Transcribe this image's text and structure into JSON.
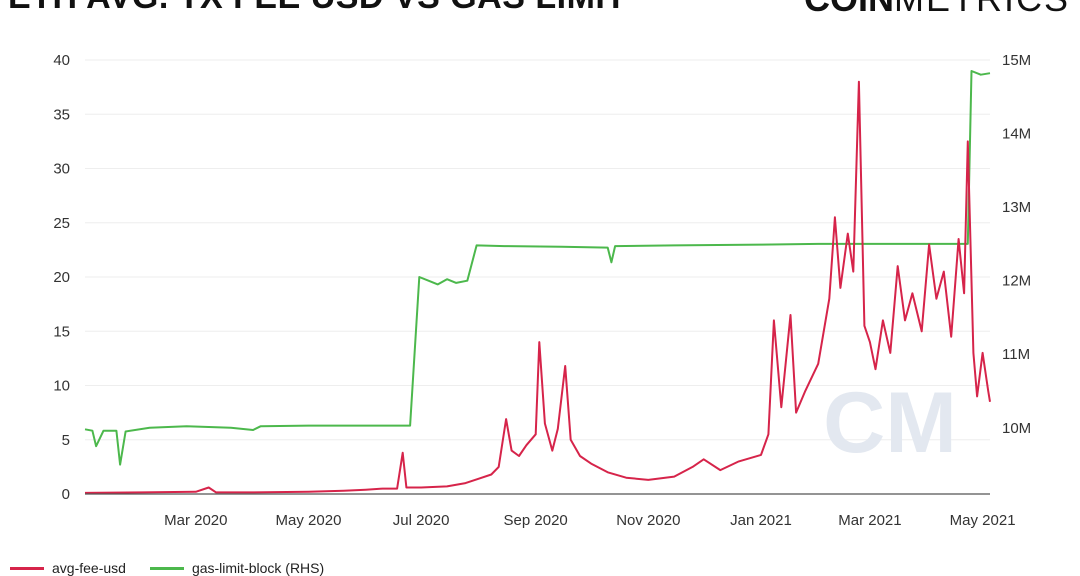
{
  "header": {
    "title": "ETH AVG. TX FEE USD VS GAS LIMIT",
    "logo_bold": "COIN",
    "logo_light": "METRICS"
  },
  "chart_data": {
    "type": "line",
    "x_axis": {
      "type": "date",
      "range": [
        "2020-01-01",
        "2021-05-05"
      ],
      "tick_labels": [
        "Mar 2020",
        "May 2020",
        "Jul 2020",
        "Sep 2020",
        "Nov 2020",
        "Jan 2021",
        "Mar 2021",
        "May 2021"
      ],
      "tick_dates": [
        "2020-03-01",
        "2020-05-01",
        "2020-07-01",
        "2020-09-01",
        "2020-11-01",
        "2021-01-01",
        "2021-03-01",
        "2021-05-01"
      ]
    },
    "y_axis_left": {
      "range": [
        0,
        40
      ],
      "ticks": [
        0,
        5,
        10,
        15,
        20,
        25,
        30,
        35,
        40
      ],
      "tick_labels": [
        "0",
        "5",
        "10",
        "15",
        "20",
        "25",
        "30",
        "35",
        "40"
      ]
    },
    "y_axis_right": {
      "range": [
        9.1,
        15
      ],
      "ticks": [
        10,
        11,
        12,
        13,
        14,
        15
      ],
      "tick_labels": [
        "10M",
        "11M",
        "12M",
        "13M",
        "14M",
        "15M"
      ]
    },
    "grid": true,
    "legend_position": "bottom-left",
    "watermark": "CM",
    "series": [
      {
        "name": "avg-fee-usd",
        "color": "#d6244a",
        "axis": "left",
        "points": [
          [
            "2020-01-01",
            0.1
          ],
          [
            "2020-02-01",
            0.15
          ],
          [
            "2020-03-01",
            0.2
          ],
          [
            "2020-03-08",
            0.6
          ],
          [
            "2020-03-12",
            0.15
          ],
          [
            "2020-04-01",
            0.15
          ],
          [
            "2020-05-01",
            0.2
          ],
          [
            "2020-05-20",
            0.3
          ],
          [
            "2020-06-01",
            0.4
          ],
          [
            "2020-06-10",
            0.5
          ],
          [
            "2020-06-18",
            0.5
          ],
          [
            "2020-06-21",
            3.8
          ],
          [
            "2020-06-23",
            0.6
          ],
          [
            "2020-07-01",
            0.6
          ],
          [
            "2020-07-15",
            0.7
          ],
          [
            "2020-07-25",
            1.0
          ],
          [
            "2020-08-01",
            1.4
          ],
          [
            "2020-08-08",
            1.8
          ],
          [
            "2020-08-12",
            2.5
          ],
          [
            "2020-08-16",
            6.9
          ],
          [
            "2020-08-19",
            4.0
          ],
          [
            "2020-08-23",
            3.5
          ],
          [
            "2020-08-27",
            4.5
          ],
          [
            "2020-09-01",
            5.5
          ],
          [
            "2020-09-03",
            14.0
          ],
          [
            "2020-09-06",
            6.5
          ],
          [
            "2020-09-10",
            4.0
          ],
          [
            "2020-09-13",
            6.0
          ],
          [
            "2020-09-17",
            11.8
          ],
          [
            "2020-09-20",
            5.0
          ],
          [
            "2020-09-25",
            3.5
          ],
          [
            "2020-10-01",
            2.8
          ],
          [
            "2020-10-10",
            2.0
          ],
          [
            "2020-10-20",
            1.5
          ],
          [
            "2020-11-01",
            1.3
          ],
          [
            "2020-11-15",
            1.6
          ],
          [
            "2020-11-25",
            2.5
          ],
          [
            "2020-12-01",
            3.2
          ],
          [
            "2020-12-10",
            2.2
          ],
          [
            "2020-12-20",
            3.0
          ],
          [
            "2021-01-01",
            3.6
          ],
          [
            "2021-01-05",
            5.5
          ],
          [
            "2021-01-08",
            16.0
          ],
          [
            "2021-01-12",
            8.0
          ],
          [
            "2021-01-17",
            16.5
          ],
          [
            "2021-01-20",
            7.5
          ],
          [
            "2021-01-25",
            9.5
          ],
          [
            "2021-02-01",
            12.0
          ],
          [
            "2021-02-07",
            18.0
          ],
          [
            "2021-02-10",
            25.5
          ],
          [
            "2021-02-13",
            19.0
          ],
          [
            "2021-02-17",
            24.0
          ],
          [
            "2021-02-20",
            20.5
          ],
          [
            "2021-02-23",
            38.0
          ],
          [
            "2021-02-26",
            15.5
          ],
          [
            "2021-03-01",
            14.0
          ],
          [
            "2021-03-04",
            11.5
          ],
          [
            "2021-03-08",
            16.0
          ],
          [
            "2021-03-12",
            13.0
          ],
          [
            "2021-03-16",
            21.0
          ],
          [
            "2021-03-20",
            16.0
          ],
          [
            "2021-03-24",
            18.5
          ],
          [
            "2021-03-29",
            15.0
          ],
          [
            "2021-04-02",
            23.0
          ],
          [
            "2021-04-06",
            18.0
          ],
          [
            "2021-04-10",
            20.5
          ],
          [
            "2021-04-14",
            14.5
          ],
          [
            "2021-04-18",
            23.5
          ],
          [
            "2021-04-21",
            18.5
          ],
          [
            "2021-04-23",
            32.5
          ],
          [
            "2021-04-26",
            13.0
          ],
          [
            "2021-04-28",
            9.0
          ],
          [
            "2021-05-01",
            13.0
          ],
          [
            "2021-05-04",
            9.5
          ],
          [
            "2021-05-05",
            8.5
          ]
        ]
      },
      {
        "name": "gas-limit-block (RHS)",
        "color": "#4cb84c",
        "axis": "right",
        "points": [
          [
            "2020-01-01",
            9.98
          ],
          [
            "2020-01-05",
            9.96
          ],
          [
            "2020-01-07",
            9.75
          ],
          [
            "2020-01-11",
            9.96
          ],
          [
            "2020-01-18",
            9.96
          ],
          [
            "2020-01-20",
            9.5
          ],
          [
            "2020-01-23",
            9.95
          ],
          [
            "2020-02-05",
            10.0
          ],
          [
            "2020-02-25",
            10.02
          ],
          [
            "2020-03-20",
            10.0
          ],
          [
            "2020-04-01",
            9.97
          ],
          [
            "2020-04-05",
            10.02
          ],
          [
            "2020-05-01",
            10.03
          ],
          [
            "2020-06-01",
            10.03
          ],
          [
            "2020-06-25",
            10.03
          ],
          [
            "2020-06-30",
            12.05
          ],
          [
            "2020-07-05",
            12.0
          ],
          [
            "2020-07-10",
            11.95
          ],
          [
            "2020-07-15",
            12.02
          ],
          [
            "2020-07-20",
            11.97
          ],
          [
            "2020-07-26",
            12.0
          ],
          [
            "2020-07-31",
            12.48
          ],
          [
            "2020-08-15",
            12.47
          ],
          [
            "2020-09-15",
            12.46
          ],
          [
            "2020-10-10",
            12.45
          ],
          [
            "2020-10-12",
            12.25
          ],
          [
            "2020-10-14",
            12.47
          ],
          [
            "2020-11-15",
            12.48
          ],
          [
            "2021-01-01",
            12.49
          ],
          [
            "2021-02-01",
            12.5
          ],
          [
            "2021-04-23",
            12.5
          ],
          [
            "2021-04-25",
            14.85
          ],
          [
            "2021-04-30",
            14.8
          ],
          [
            "2021-05-05",
            14.82
          ]
        ]
      }
    ]
  }
}
